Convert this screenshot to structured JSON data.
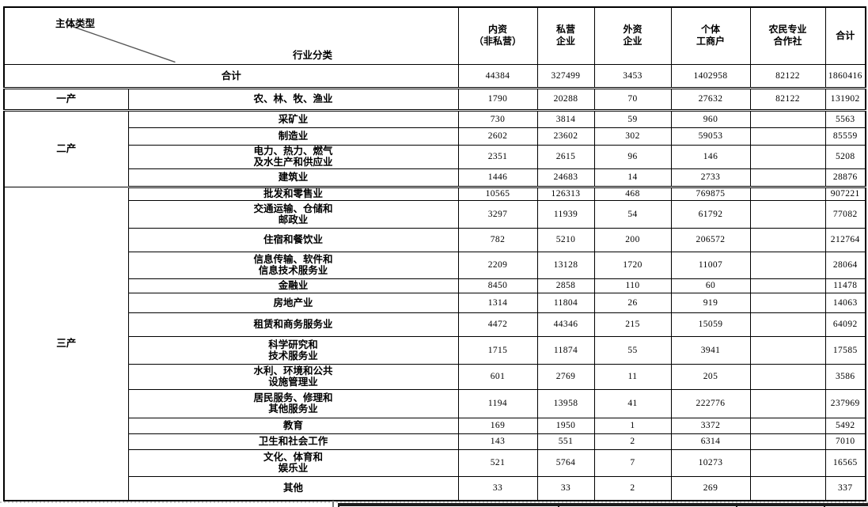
{
  "table": {
    "corner": {
      "top_label": "主体类型",
      "bottom_label": "行业分类"
    },
    "column_headers": [
      "内资\n（非私营）",
      "私营\n企业",
      "外资\n企业",
      "个体\n工商户",
      "农民专业\n合作社",
      "合计"
    ],
    "total_row": {
      "label": "合计",
      "values": [
        "44384",
        "327499",
        "3453",
        "1402958",
        "82122",
        "1860416"
      ]
    },
    "groups": [
      {
        "label": "一产",
        "rows": [
          {
            "industry": "农、林、牧、渔业",
            "values": [
              "1790",
              "20288",
              "70",
              "27632",
              "82122",
              "131902"
            ]
          }
        ]
      },
      {
        "label": "二产",
        "rows": [
          {
            "industry": "采矿业",
            "values": [
              "730",
              "3814",
              "59",
              "960",
              "",
              "5563"
            ]
          },
          {
            "industry": "制造业",
            "values": [
              "2602",
              "23602",
              "302",
              "59053",
              "",
              "85559"
            ]
          },
          {
            "industry": "电力、热力、燃气\n及水生产和供应业",
            "values": [
              "2351",
              "2615",
              "96",
              "146",
              "",
              "5208"
            ]
          },
          {
            "industry": "建筑业",
            "values": [
              "1446",
              "24683",
              "14",
              "2733",
              "",
              "28876"
            ]
          }
        ]
      },
      {
        "label": "三产",
        "rows": [
          {
            "industry": "批发和零售业",
            "values": [
              "10565",
              "126313",
              "468",
              "769875",
              "",
              "907221"
            ]
          },
          {
            "industry": "交通运输、仓储和\n邮政业",
            "values": [
              "3297",
              "11939",
              "54",
              "61792",
              "",
              "77082"
            ]
          },
          {
            "industry": "住宿和餐饮业",
            "values": [
              "782",
              "5210",
              "200",
              "206572",
              "",
              "212764"
            ]
          },
          {
            "industry": "信息传输、软件和\n信息技术服务业",
            "values": [
              "2209",
              "13128",
              "1720",
              "11007",
              "",
              "28064"
            ]
          },
          {
            "industry": "金融业",
            "values": [
              "8450",
              "2858",
              "110",
              "60",
              "",
              "11478"
            ]
          },
          {
            "industry": "房地产业",
            "values": [
              "1314",
              "11804",
              "26",
              "919",
              "",
              "14063"
            ]
          },
          {
            "industry": "租赁和商务服务业",
            "values": [
              "4472",
              "44346",
              "215",
              "15059",
              "",
              "64092"
            ]
          },
          {
            "industry": "科学研究和\n技术服务业",
            "values": [
              "1715",
              "11874",
              "55",
              "3941",
              "",
              "17585"
            ]
          },
          {
            "industry": "水利、环境和公共\n设施管理业",
            "values": [
              "601",
              "2769",
              "11",
              "205",
              "",
              "3586"
            ]
          },
          {
            "industry": "居民服务、修理和\n其他服务业",
            "values": [
              "1194",
              "13958",
              "41",
              "222776",
              "",
              "237969"
            ]
          },
          {
            "industry": "教育",
            "values": [
              "169",
              "1950",
              "1",
              "3372",
              "",
              "5492"
            ]
          },
          {
            "industry": "卫生和社会工作",
            "values": [
              "143",
              "551",
              "2",
              "6314",
              "",
              "7010"
            ]
          },
          {
            "industry": "文化、体育和\n娱乐业",
            "values": [
              "521",
              "5764",
              "7",
              "10273",
              "",
              "16565"
            ]
          },
          {
            "industry": "其他",
            "values": [
              "33",
              "33",
              "2",
              "269",
              "",
              "337"
            ]
          }
        ]
      }
    ]
  }
}
